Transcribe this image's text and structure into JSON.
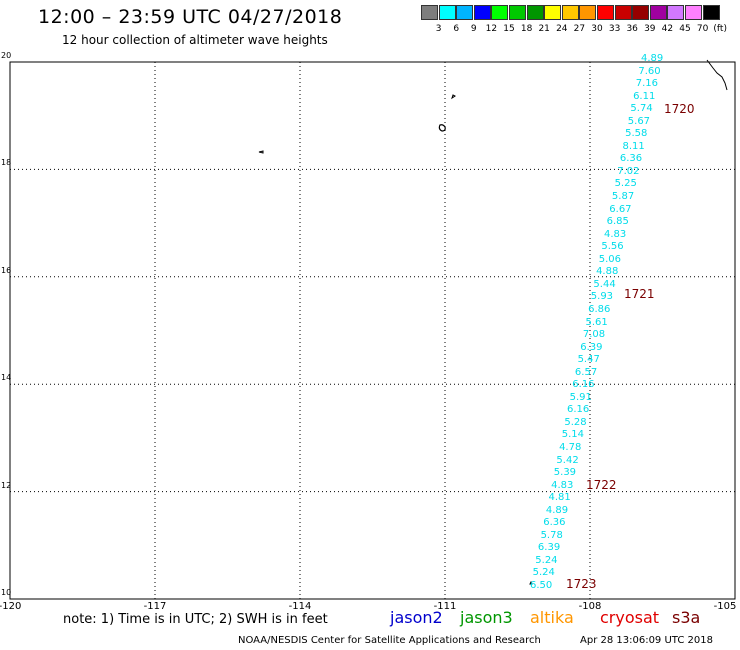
{
  "header": {
    "title": "12:00 – 23:59 UTC 04/27/2018",
    "subtitle": "12 hour collection of altimeter wave heights"
  },
  "colorbar": {
    "colors": [
      "#7d7d7d",
      "#00ffff",
      "#00b4ff",
      "#0000ff",
      "#00ff00",
      "#00c800",
      "#009600",
      "#ffff00",
      "#ffc800",
      "#ff9600",
      "#ff0000",
      "#c80000",
      "#960000",
      "#a000a0",
      "#d278ff",
      "#ff80ff",
      "#000000"
    ],
    "labels": [
      "3",
      "6",
      "9",
      "12",
      "15",
      "18",
      "21",
      "24",
      "27",
      "30",
      "33",
      "36",
      "39",
      "42",
      "45",
      "70",
      "(ft)"
    ]
  },
  "map": {
    "lon_range": [
      -120,
      -105
    ],
    "lat_range": [
      10,
      20
    ],
    "x_ticks": [
      "-120",
      "-117",
      "-114",
      "-111",
      "-108",
      "-105"
    ],
    "y_ticks": [
      "20",
      "18",
      "16",
      "14",
      "12",
      "10"
    ]
  },
  "track": {
    "values": [
      "4.89",
      "7.60",
      "7.16",
      "6.11",
      "5.74",
      "5.67",
      "5.58",
      "8.11",
      "6.36",
      "7.02",
      "5.25",
      "5.87",
      "6.67",
      "6.85",
      "4.83",
      "5.56",
      "5.06",
      "4.88",
      "5.44",
      "5.93",
      "6.86",
      "5.61",
      "7.08",
      "6.39",
      "5.47",
      "6.57",
      "6.16",
      "5.91",
      "6.16",
      "5.28",
      "5.14",
      "4.78",
      "5.42",
      "5.39",
      "4.83",
      "4.81",
      "4.89",
      "6.36",
      "5.78",
      "6.39",
      "5.24",
      "5.24",
      "6.50"
    ],
    "color": "#00dcea"
  },
  "passes": {
    "labels": [
      "1720",
      "1721",
      "1722",
      "1723"
    ],
    "color": "#7a0000"
  },
  "footer": {
    "note": "note:  1) Time is in UTC;  2) SWH is in feet",
    "satellites": [
      {
        "name": "jason2",
        "color": "#0000cc"
      },
      {
        "name": "jason3",
        "color": "#009600"
      },
      {
        "name": "altika",
        "color": "#ff9600"
      },
      {
        "name": "cryosat",
        "color": "#e00000"
      },
      {
        "name": "s3a",
        "color": "#7a0000"
      }
    ],
    "credit": "NOAA/NESDIS Center for Satellite Applications and Research",
    "timestamp": "Apr 28 13:06:09 UTC 2018"
  }
}
